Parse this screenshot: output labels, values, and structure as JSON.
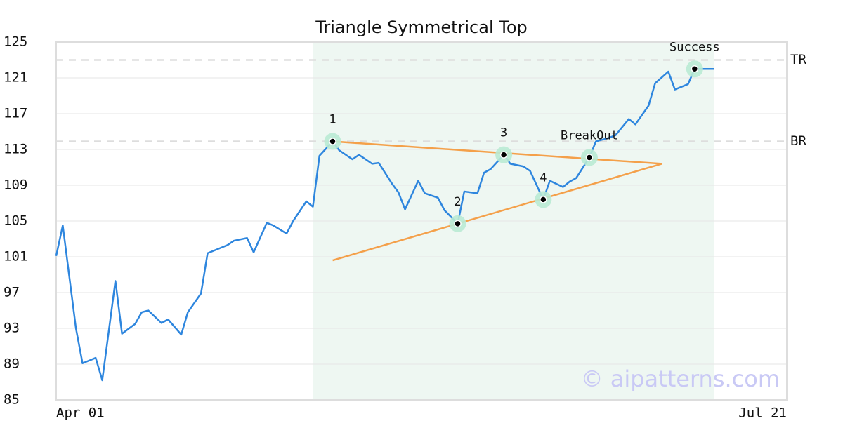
{
  "chart_data": {
    "type": "line",
    "title": "Triangle Symmetrical Top",
    "x": [
      "Apr 01",
      "Apr 02",
      "Apr 04",
      "Apr 05",
      "Apr 07",
      "Apr 08",
      "Apr 10",
      "Apr 11",
      "Apr 13",
      "Apr 14",
      "Apr 15",
      "Apr 17",
      "Apr 18",
      "Apr 20",
      "Apr 21",
      "Apr 23",
      "Apr 24",
      "Apr 26",
      "Apr 27",
      "Apr 28",
      "Apr 30",
      "May 01",
      "May 03",
      "May 04",
      "May 06",
      "May 07",
      "May 09",
      "May 10",
      "May 11",
      "May 13",
      "May 14",
      "May 16",
      "May 17",
      "May 19",
      "May 20",
      "May 22",
      "May 23",
      "May 24",
      "May 26",
      "May 27",
      "May 29",
      "May 30",
      "Jun 01",
      "Jun 02",
      "Jun 04",
      "Jun 05",
      "Jun 06",
      "Jun 08",
      "Jun 09",
      "Jun 11",
      "Jun 12",
      "Jun 14",
      "Jun 15",
      "Jun 17",
      "Jun 18",
      "Jun 19",
      "Jun 21",
      "Jun 22",
      "Jun 24",
      "Jun 25",
      "Jun 27",
      "Jun 28",
      "Jun 30",
      "Jul 01",
      "Jul 03",
      "Jul 04",
      "Jul 06",
      "Jul 07",
      "Jul 09",
      "Jul 10"
    ],
    "values": [
      101.1,
      104.5,
      93.0,
      89.1,
      89.7,
      87.2,
      98.3,
      92.4,
      93.5,
      94.8,
      95.0,
      93.6,
      94.0,
      92.3,
      94.8,
      96.9,
      101.4,
      102.0,
      102.3,
      102.8,
      103.1,
      101.5,
      104.8,
      104.5,
      103.6,
      105.0,
      107.2,
      106.6,
      112.3,
      113.9,
      112.9,
      111.9,
      112.4,
      111.4,
      111.5,
      109.2,
      108.2,
      106.3,
      109.5,
      108.1,
      107.6,
      106.2,
      104.7,
      108.3,
      108.1,
      110.4,
      110.8,
      112.4,
      111.4,
      111.1,
      110.6,
      107.4,
      109.5,
      108.8,
      109.4,
      109.8,
      112.1,
      113.9,
      114.3,
      114.6,
      116.4,
      115.8,
      117.9,
      120.4,
      121.7,
      119.7,
      120.3,
      122.0,
      122.0,
      122.0
    ],
    "color": "#2e86de",
    "xlim": [
      "Apr 01",
      "Jul 21"
    ],
    "xticks": [
      "Apr 01",
      "Jul 21"
    ],
    "ylim": [
      85,
      125
    ],
    "yticks": [
      85,
      89,
      93,
      97,
      101,
      105,
      109,
      113,
      117,
      121,
      125
    ],
    "grid": true,
    "shade": {
      "x": [
        "May 10",
        "Jul 10"
      ],
      "color": "#eef7f2"
    },
    "levels": [
      {
        "name": "TR",
        "value": 123.0
      },
      {
        "name": "BR",
        "value": 113.9
      }
    ],
    "level_color": "#dddddd",
    "trendlines": [
      {
        "x": [
          "May 13",
          "Jul 02"
        ],
        "y": [
          113.9,
          111.4
        ]
      },
      {
        "x": [
          "May 13",
          "Jul 02"
        ],
        "y": [
          100.6,
          111.4
        ]
      }
    ],
    "trendline_color": "#f4a04a",
    "annotations": [
      {
        "label": "1",
        "x": "May 13",
        "y": 113.9
      },
      {
        "label": "2",
        "x": "Jun 01",
        "y": 104.7
      },
      {
        "label": "3",
        "x": "Jun 08",
        "y": 112.4
      },
      {
        "label": "4",
        "x": "Jun 14",
        "y": 107.4
      },
      {
        "label": "BreakOut",
        "x": "Jun 21",
        "y": 112.1
      },
      {
        "label": "Success",
        "x": "Jul 07",
        "y": 122.0
      }
    ],
    "marker_color": "#b9ead4",
    "watermark": "© aipatterns.com"
  }
}
